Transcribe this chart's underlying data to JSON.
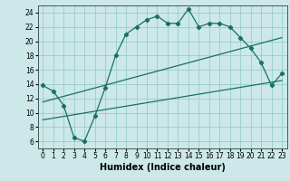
{
  "xlabel": "Humidex (Indice chaleur)",
  "bg_color": "#cce8e8",
  "grid_color": "#99cccc",
  "line_color": "#1a7060",
  "xlim": [
    -0.5,
    23.5
  ],
  "ylim": [
    5,
    25
  ],
  "yticks": [
    6,
    8,
    10,
    12,
    14,
    16,
    18,
    20,
    22,
    24
  ],
  "xticks": [
    0,
    1,
    2,
    3,
    4,
    5,
    6,
    7,
    8,
    9,
    10,
    11,
    12,
    13,
    14,
    15,
    16,
    17,
    18,
    19,
    20,
    21,
    22,
    23
  ],
  "curve1_x": [
    0,
    1,
    2,
    3,
    4,
    5,
    6,
    7,
    8,
    9,
    10,
    11,
    12,
    13,
    14,
    15,
    16,
    17,
    18,
    19,
    20,
    21,
    22,
    23
  ],
  "curve1_y": [
    13.8,
    13.0,
    11.0,
    6.5,
    6.0,
    9.5,
    13.5,
    18.0,
    21.0,
    22.0,
    23.0,
    23.5,
    22.5,
    22.5,
    24.5,
    22.0,
    22.5,
    22.5,
    22.0,
    20.5,
    19.0,
    17.0,
    13.8,
    15.5
  ],
  "line1_x": [
    0,
    23
  ],
  "line1_y": [
    11.5,
    20.5
  ],
  "line2_x": [
    0,
    23
  ],
  "line2_y": [
    9.0,
    14.5
  ],
  "xlabel_fontsize": 7,
  "tick_fontsize": 5.5
}
